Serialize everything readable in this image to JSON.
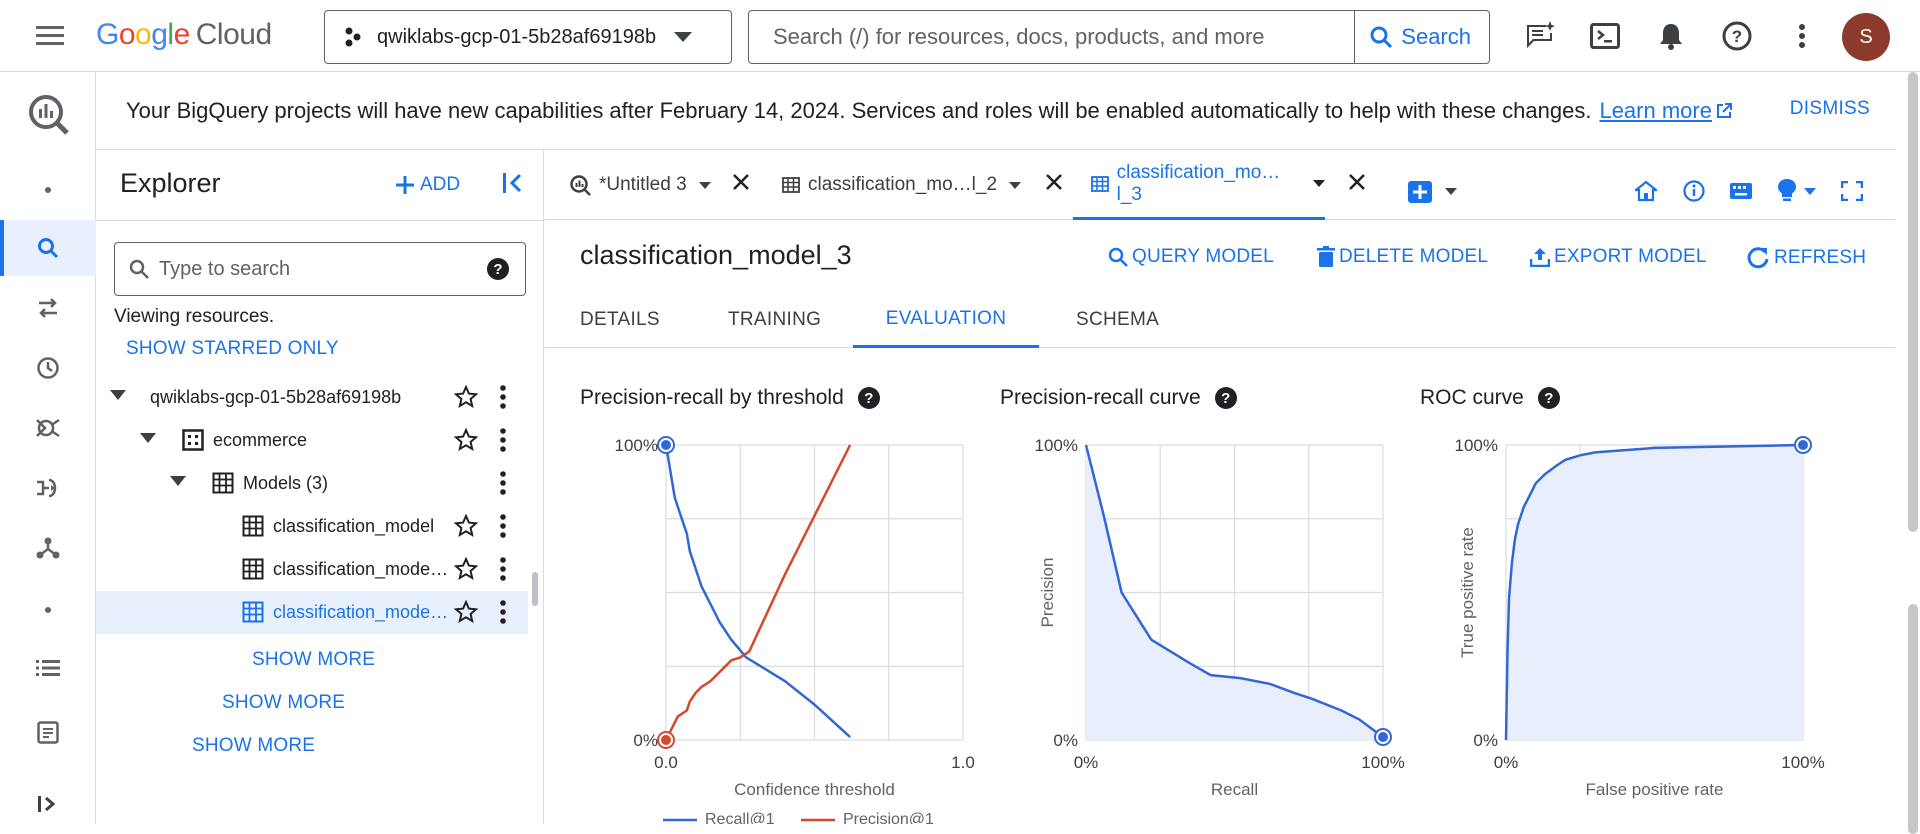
{
  "topbar": {
    "logo_google": "Google",
    "logo_cloud": "Cloud",
    "project": "qwiklabs-gcp-01-5b28af69198b",
    "search_placeholder": "Search (/) for resources, docs, products, and more",
    "search_button": "Search",
    "avatar_letter": "S"
  },
  "banner": {
    "text": "Your BigQuery projects will have new capabilities after February 14, 2024. Services and roles will be enabled automatically to help with these changes.",
    "link": "Learn more",
    "dismiss": "DISMISS"
  },
  "explorer": {
    "title": "Explorer",
    "add": "ADD",
    "search_placeholder": "Type to search",
    "viewing": "Viewing resources.",
    "show_starred": "SHOW STARRED ONLY",
    "tree": [
      {
        "label": "qwiklabs-gcp-01-5b28af69198b"
      },
      {
        "label": "ecommerce"
      },
      {
        "label": "Models (3)"
      },
      {
        "label": "classification_model"
      },
      {
        "label": "classification_mode…"
      },
      {
        "label": "classification_mode…"
      }
    ],
    "show_more_1": "SHOW MORE",
    "show_more_2": "SHOW MORE",
    "show_more_3": "SHOW MORE"
  },
  "tabs": [
    {
      "label": "*Untitled 3"
    },
    {
      "label": "classification_mo…l_2"
    },
    {
      "label": "classification_mo…l_3"
    }
  ],
  "model": {
    "title": "classification_model_3",
    "query": "QUERY MODEL",
    "delete": "DELETE MODEL",
    "export": "EXPORT MODEL",
    "refresh": "REFRESH",
    "subtabs": [
      "DETAILS",
      "TRAINING",
      "EVALUATION",
      "SCHEMA"
    ]
  },
  "chart_data": [
    {
      "type": "line",
      "title": "Precision-recall by threshold",
      "xlabel": "Confidence threshold",
      "xlim": [
        0.0,
        1.0
      ],
      "ylim": [
        0,
        100
      ],
      "x_tick_labels": [
        "0.0",
        "1.0"
      ],
      "y_tick_labels": [
        "100%",
        "0%"
      ],
      "legend_partial": [
        "Recall@1",
        "Precision@1"
      ],
      "series": [
        {
          "name": "Recall@1",
          "color": "#3367d6",
          "x": [
            0.0,
            0.01,
            0.02,
            0.03,
            0.05,
            0.07,
            0.08,
            0.1,
            0.12,
            0.15,
            0.18,
            0.22,
            0.27,
            0.4,
            0.5,
            0.62
          ],
          "y": [
            100,
            94,
            88,
            82,
            76,
            70,
            64,
            58,
            52,
            46,
            40,
            34,
            28,
            20,
            12,
            1
          ]
        },
        {
          "name": "Precision@1",
          "color": "#d7472d",
          "x": [
            0.0,
            0.02,
            0.04,
            0.07,
            0.08,
            0.1,
            0.12,
            0.15,
            0.18,
            0.2,
            0.22,
            0.25,
            0.28,
            0.4,
            0.52,
            0.62
          ],
          "y": [
            0,
            4,
            8,
            10,
            13,
            16,
            18,
            20,
            23,
            25,
            27,
            28,
            30,
            56,
            80,
            100
          ]
        }
      ]
    },
    {
      "type": "area",
      "title": "Precision-recall curve",
      "xlabel": "Recall",
      "ylabel": "Precision",
      "xlim": [
        0,
        100
      ],
      "ylim": [
        0,
        100
      ],
      "x_tick_labels": [
        "0%",
        "100%"
      ],
      "y_tick_labels": [
        "100%",
        "0%"
      ],
      "series": [
        {
          "name": "Precision-recall",
          "color": "#3367d6",
          "x": [
            0,
            6,
            12,
            22,
            35,
            42,
            52,
            62,
            70,
            76,
            86,
            92,
            96,
            100
          ],
          "y": [
            100,
            76,
            50,
            34,
            26,
            22,
            21,
            19,
            16,
            14,
            10,
            7,
            4,
            1
          ]
        }
      ]
    },
    {
      "type": "area",
      "title": "ROC curve",
      "xlabel": "False positive rate",
      "ylabel": "True positive rate",
      "xlim": [
        0,
        100
      ],
      "ylim": [
        0,
        100
      ],
      "x_tick_labels": [
        "0%",
        "100%"
      ],
      "y_tick_labels": [
        "100%",
        "0%"
      ],
      "series": [
        {
          "name": "ROC",
          "color": "#3367d6",
          "x": [
            0,
            0.5,
            1,
            2,
            3,
            4,
            6,
            8,
            10,
            13,
            17,
            20,
            25,
            30,
            50,
            100
          ],
          "y": [
            0,
            30,
            48,
            60,
            68,
            73,
            79,
            83,
            87,
            90,
            93,
            95,
            96.5,
            97.5,
            99,
            100
          ]
        }
      ]
    }
  ]
}
